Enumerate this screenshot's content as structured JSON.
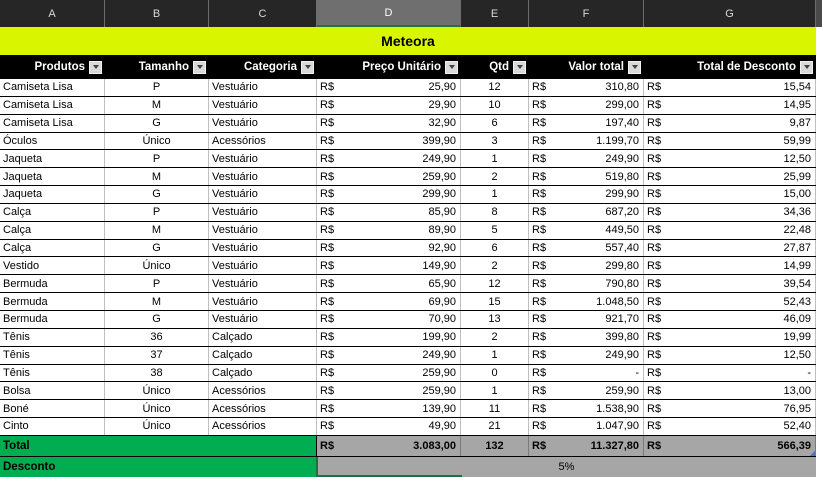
{
  "sheet": {
    "column_letters": [
      "A",
      "B",
      "C",
      "D",
      "E",
      "F",
      "G"
    ],
    "selected_column": "D",
    "title": "Meteora"
  },
  "table": {
    "headers": [
      "Produtos",
      "Tamanho",
      "Categoria",
      "Preço Unitário",
      "Qtd",
      "Valor total",
      "Total de Desconto"
    ],
    "currency": "R$",
    "rows": [
      [
        "Camiseta Lisa",
        "P",
        "Vestuário",
        "25,90",
        "12",
        "310,80",
        "15,54"
      ],
      [
        "Camiseta Lisa",
        "M",
        "Vestuário",
        "29,90",
        "10",
        "299,00",
        "14,95"
      ],
      [
        "Camiseta Lisa",
        "G",
        "Vestuário",
        "32,90",
        "6",
        "197,40",
        "9,87"
      ],
      [
        "Óculos",
        "Único",
        "Acessórios",
        "399,90",
        "3",
        "1.199,70",
        "59,99"
      ],
      [
        "Jaqueta",
        "P",
        "Vestuário",
        "249,90",
        "1",
        "249,90",
        "12,50"
      ],
      [
        "Jaqueta",
        "M",
        "Vestuário",
        "259,90",
        "2",
        "519,80",
        "25,99"
      ],
      [
        "Jaqueta",
        "G",
        "Vestuário",
        "299,90",
        "1",
        "299,90",
        "15,00"
      ],
      [
        "Calça",
        "P",
        "Vestuário",
        "85,90",
        "8",
        "687,20",
        "34,36"
      ],
      [
        "Calça",
        "M",
        "Vestuário",
        "89,90",
        "5",
        "449,50",
        "22,48"
      ],
      [
        "Calça",
        "G",
        "Vestuário",
        "92,90",
        "6",
        "557,40",
        "27,87"
      ],
      [
        "Vestido",
        "Único",
        "Vestuário",
        "149,90",
        "2",
        "299,80",
        "14,99"
      ],
      [
        "Bermuda",
        "P",
        "Vestuário",
        "65,90",
        "12",
        "790,80",
        "39,54"
      ],
      [
        "Bermuda",
        "M",
        "Vestuário",
        "69,90",
        "15",
        "1.048,50",
        "52,43"
      ],
      [
        "Bermuda",
        "G",
        "Vestuário",
        "70,90",
        "13",
        "921,70",
        "46,09"
      ],
      [
        "Tênis",
        "36",
        "Calçado",
        "199,90",
        "2",
        "399,80",
        "19,99"
      ],
      [
        "Tênis",
        "37",
        "Calçado",
        "249,90",
        "1",
        "249,90",
        "12,50"
      ],
      [
        "Tênis",
        "38",
        "Calçado",
        "259,90",
        "0",
        "-",
        "-"
      ],
      [
        "Bolsa",
        "Único",
        "Acessórios",
        "259,90",
        "1",
        "259,90",
        "13,00"
      ],
      [
        "Boné",
        "Único",
        "Acessórios",
        "139,90",
        "11",
        "1.538,90",
        "76,95"
      ],
      [
        "Cinto",
        "Único",
        "Acessórios",
        "49,90",
        "21",
        "1.047,90",
        "52,40"
      ]
    ],
    "total": {
      "label": "Total",
      "preco": "3.083,00",
      "qtd": "132",
      "valor": "11.327,80",
      "desconto": "566,39"
    },
    "discount": {
      "label": "Desconto",
      "value": "5%"
    }
  },
  "colors": {
    "title_bg": "#d9f500",
    "letters_bar_bg": "#262626",
    "selected_column_bg": "#6f6f6f",
    "selected_column_underline": "#1e7145",
    "header_bg": "#000000",
    "header_text": "#ffffff",
    "accent_green": "#00ad50",
    "total_gray": "#a6a6a6",
    "selection_green": "#1e7145",
    "table_corner_blue": "#4472c4"
  }
}
